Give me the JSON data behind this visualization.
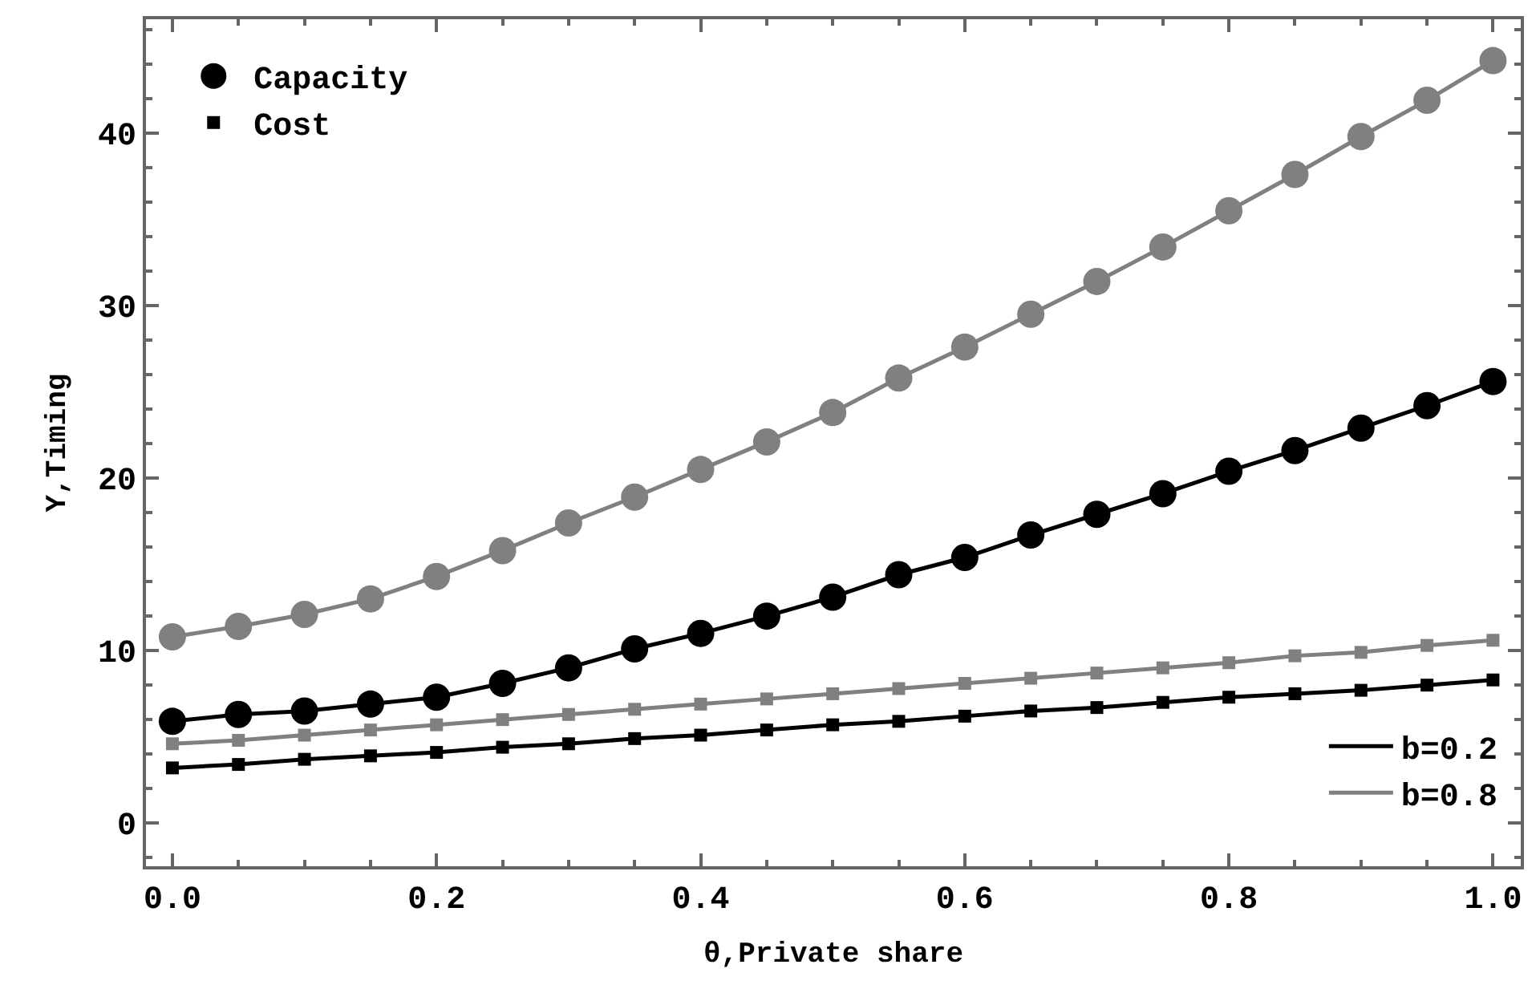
{
  "chart_data": {
    "type": "line",
    "xlabel": "θ,Private share",
    "ylabel": "Y,Timing",
    "x": [
      0,
      0.05,
      0.1,
      0.15,
      0.2,
      0.25,
      0.3,
      0.35,
      0.4,
      0.45,
      0.5,
      0.55,
      0.6,
      0.65,
      0.7,
      0.75,
      0.8,
      0.85,
      0.9,
      0.95,
      1.0
    ],
    "series": [
      {
        "color": "#808080",
        "marker": "circle",
        "values": [
          10.8,
          11.4,
          12.1,
          13.0,
          14.3,
          15.8,
          17.4,
          18.9,
          20.5,
          22.1,
          23.8,
          25.8,
          27.6,
          29.5,
          31.4,
          33.4,
          35.5,
          37.6,
          39.8,
          41.9,
          44.2
        ]
      },
      {
        "color": "#000000",
        "marker": "circle",
        "values": [
          5.9,
          6.3,
          6.5,
          6.9,
          7.3,
          8.1,
          9.0,
          10.1,
          11.0,
          12.0,
          13.1,
          14.4,
          15.4,
          16.7,
          17.9,
          19.1,
          20.4,
          21.6,
          22.9,
          24.2,
          25.6
        ]
      },
      {
        "color": "#808080",
        "marker": "square",
        "values": [
          4.6,
          4.8,
          5.1,
          5.4,
          5.7,
          6.0,
          6.3,
          6.6,
          6.9,
          7.2,
          7.5,
          7.8,
          8.1,
          8.4,
          8.7,
          9.0,
          9.3,
          9.7,
          9.9,
          10.3,
          10.6
        ]
      },
      {
        "color": "#000000",
        "marker": "square",
        "values": [
          3.2,
          3.4,
          3.7,
          3.9,
          4.1,
          4.4,
          4.6,
          4.9,
          5.1,
          5.4,
          5.7,
          5.9,
          6.2,
          6.5,
          6.7,
          7.0,
          7.3,
          7.5,
          7.7,
          8.0,
          8.3
        ]
      },
      {
        "name": "Capacity",
        "color": "#000000",
        "marker": "circle",
        "line_style": "none",
        "values": [
          null,
          null,
          null,
          null,
          null,
          null,
          null,
          null,
          null,
          null,
          null,
          null,
          null,
          null,
          null,
          null,
          null,
          null,
          null,
          null,
          null
        ]
      },
      {
        "name": "Cost",
        "color": "#000000",
        "marker": "square",
        "line_style": "none",
        "values": [
          null,
          null,
          null,
          null,
          null,
          null,
          null,
          null,
          null,
          null,
          null,
          null,
          null,
          null,
          null,
          null,
          null,
          null,
          null,
          null,
          null
        ]
      },
      {
        "name": "b=0.2",
        "color": "#000000",
        "marker": "none",
        "line_style": "solid",
        "values": [
          null,
          null,
          null,
          null,
          null,
          null,
          null,
          null,
          null,
          null,
          null,
          null,
          null,
          null,
          null,
          null,
          null,
          null,
          null,
          null,
          null
        ]
      },
      {
        "name": "b=0.8",
        "color": "#808080",
        "marker": "none",
        "line_style": "solid",
        "values": [
          null,
          null,
          null,
          null,
          null,
          null,
          null,
          null,
          null,
          null,
          null,
          null,
          null,
          null,
          null,
          null,
          null,
          null,
          null,
          null,
          null
        ]
      }
    ],
    "xlim": [
      -0.02,
      1.021
    ],
    "xticks": [
      {
        "value": 0,
        "label": "0.0"
      },
      {
        "value": 0.05,
        "label": null
      },
      {
        "value": 0.1,
        "label": null
      },
      {
        "value": 0.15,
        "label": null
      },
      {
        "value": 0.2,
        "label": "0.2"
      },
      {
        "value": 0.25,
        "label": null
      },
      {
        "value": 0.3,
        "label": null
      },
      {
        "value": 0.35,
        "label": null
      },
      {
        "value": 0.4,
        "label": "0.4"
      },
      {
        "value": 0.45,
        "label": null
      },
      {
        "value": 0.5,
        "label": null
      },
      {
        "value": 0.55,
        "label": null
      },
      {
        "value": 0.6,
        "label": "0.6"
      },
      {
        "value": 0.65,
        "label": null
      },
      {
        "value": 0.7,
        "label": null
      },
      {
        "value": 0.75,
        "label": null
      },
      {
        "value": 0.8,
        "label": "0.8"
      },
      {
        "value": 0.85,
        "label": null
      },
      {
        "value": 0.9,
        "label": null
      },
      {
        "value": 0.95,
        "label": null
      },
      {
        "value": 1.0,
        "label": "1.0"
      }
    ],
    "ylim": [
      -2.5,
      46.6
    ],
    "yticks": [
      {
        "value": -2,
        "label": null
      },
      0,
      {
        "value": 2,
        "label": null
      },
      {
        "value": 4,
        "label": null
      },
      {
        "value": 6,
        "label": null
      },
      {
        "value": 8,
        "label": null
      },
      10,
      {
        "value": 12,
        "label": null
      },
      {
        "value": 14,
        "label": null
      },
      {
        "value": 16,
        "label": null
      },
      {
        "value": 18,
        "label": null
      },
      20,
      {
        "value": 22,
        "label": null
      },
      {
        "value": 24,
        "label": null
      },
      {
        "value": 26,
        "label": null
      },
      {
        "value": 28,
        "label": null
      },
      30,
      {
        "value": 32,
        "label": null
      },
      {
        "value": 34,
        "label": null
      },
      {
        "value": 36,
        "label": null
      },
      {
        "value": 38,
        "label": null
      },
      40,
      {
        "value": 42,
        "label": null
      },
      {
        "value": 44,
        "label": null
      },
      {
        "value": 46,
        "label": null
      }
    ],
    "legend": "top left"
  }
}
